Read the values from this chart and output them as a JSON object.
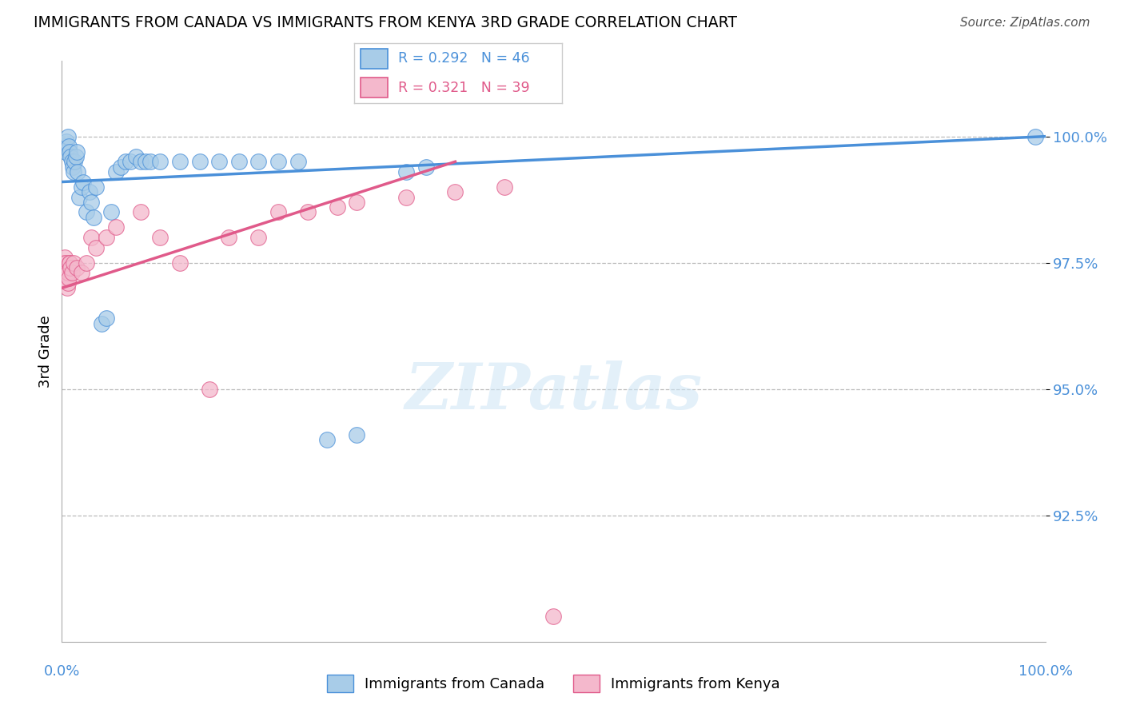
{
  "title": "IMMIGRANTS FROM CANADA VS IMMIGRANTS FROM KENYA 3RD GRADE CORRELATION CHART",
  "source": "Source: ZipAtlas.com",
  "ylabel": "3rd Grade",
  "xlim": [
    0.0,
    100.0
  ],
  "ylim": [
    90.0,
    101.5
  ],
  "yticks": [
    92.5,
    95.0,
    97.5,
    100.0
  ],
  "ytick_labels": [
    "92.5%",
    "95.0%",
    "97.5%",
    "100.0%"
  ],
  "canada_color": "#a8cce8",
  "canada_edge_color": "#4a90d9",
  "kenya_color": "#f4b8cc",
  "kenya_edge_color": "#e05a8a",
  "canada_R": 0.292,
  "canada_N": 46,
  "kenya_R": 0.321,
  "kenya_N": 39,
  "legend_canada": "Immigrants from Canada",
  "legend_kenya": "Immigrants from Kenya",
  "canada_x": [
    0.2,
    0.4,
    0.5,
    0.6,
    0.7,
    0.8,
    0.9,
    1.0,
    1.1,
    1.2,
    1.3,
    1.4,
    1.5,
    1.6,
    1.8,
    2.0,
    2.2,
    2.5,
    2.8,
    3.0,
    3.2,
    3.5,
    4.0,
    4.5,
    5.0,
    5.5,
    6.0,
    6.5,
    7.0,
    7.5,
    8.0,
    8.5,
    9.0,
    10.0,
    12.0,
    14.0,
    16.0,
    18.0,
    20.0,
    22.0,
    24.0,
    27.0,
    30.0,
    35.0,
    37.0,
    99.0
  ],
  "canada_y": [
    99.8,
    99.7,
    99.9,
    100.0,
    99.8,
    99.7,
    99.6,
    99.5,
    99.4,
    99.3,
    99.5,
    99.6,
    99.7,
    99.3,
    98.8,
    99.0,
    99.1,
    98.5,
    98.9,
    98.7,
    98.4,
    99.0,
    96.3,
    96.4,
    98.5,
    99.3,
    99.4,
    99.5,
    99.5,
    99.6,
    99.5,
    99.5,
    99.5,
    99.5,
    99.5,
    99.5,
    99.5,
    99.5,
    99.5,
    99.5,
    99.5,
    94.0,
    94.1,
    99.3,
    99.4,
    100.0
  ],
  "kenya_x": [
    0.1,
    0.15,
    0.2,
    0.25,
    0.3,
    0.35,
    0.4,
    0.45,
    0.5,
    0.55,
    0.6,
    0.65,
    0.7,
    0.75,
    0.8,
    0.9,
    1.0,
    1.2,
    1.5,
    2.0,
    2.5,
    3.0,
    3.5,
    4.5,
    5.5,
    8.0,
    10.0,
    12.0,
    15.0,
    17.0,
    20.0,
    22.0,
    25.0,
    28.0,
    30.0,
    35.0,
    40.0,
    45.0,
    50.0
  ],
  "kenya_y": [
    97.5,
    97.5,
    97.5,
    97.3,
    97.6,
    97.4,
    97.5,
    97.3,
    97.2,
    97.0,
    97.1,
    97.3,
    97.2,
    97.5,
    97.5,
    97.4,
    97.3,
    97.5,
    97.4,
    97.3,
    97.5,
    98.0,
    97.8,
    98.0,
    98.2,
    98.5,
    98.0,
    97.5,
    95.0,
    98.0,
    98.0,
    98.5,
    98.5,
    98.6,
    98.7,
    98.8,
    98.9,
    99.0,
    90.5
  ]
}
